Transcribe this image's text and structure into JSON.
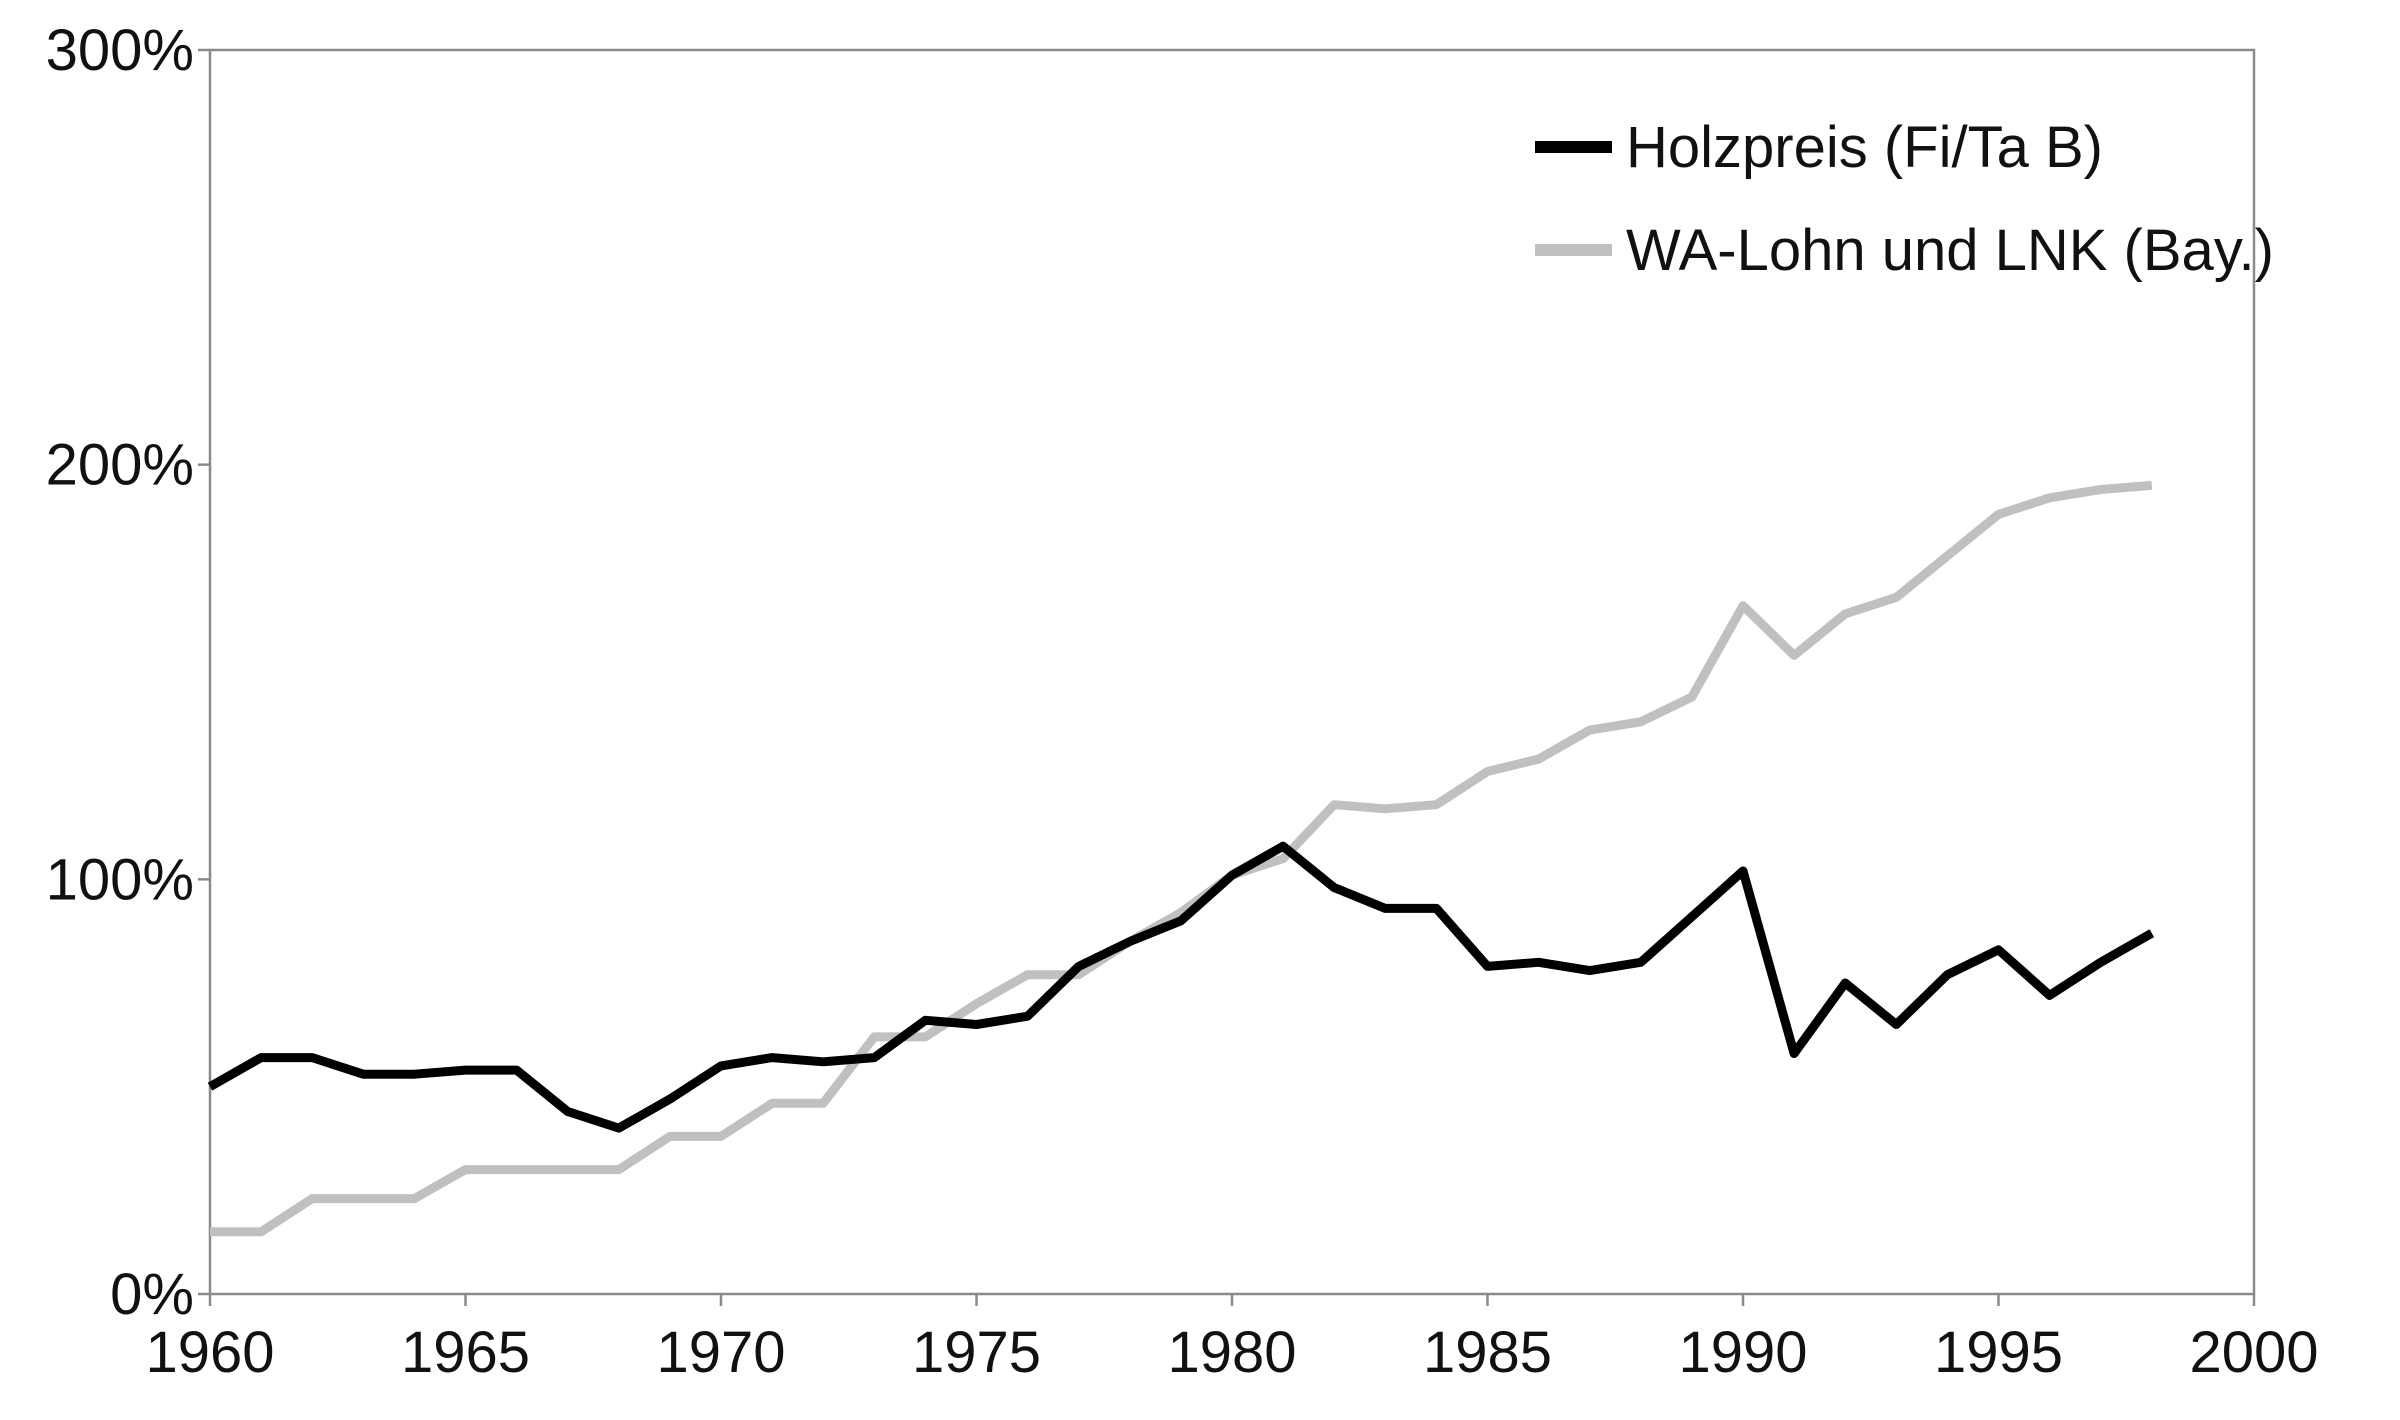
{
  "chart_data": {
    "type": "line",
    "xlim": [
      1960,
      2000
    ],
    "ylim": [
      0,
      300
    ],
    "grid": false,
    "legend_position": "top-right",
    "x_ticks": [
      "1960",
      "1965",
      "1970",
      "1975",
      "1980",
      "1985",
      "1990",
      "1995",
      "2000"
    ],
    "y_ticks": [
      "0%",
      "100%",
      "200%",
      "300%"
    ],
    "x": [
      1960,
      1961,
      1962,
      1963,
      1964,
      1965,
      1966,
      1967,
      1968,
      1969,
      1970,
      1971,
      1972,
      1973,
      1974,
      1975,
      1976,
      1977,
      1978,
      1979,
      1980,
      1981,
      1982,
      1983,
      1984,
      1985,
      1986,
      1987,
      1988,
      1989,
      1990,
      1991,
      1992,
      1993,
      1994,
      1995,
      1996,
      1997,
      1998
    ],
    "series": [
      {
        "name": "Holzpreis (Fi/Ta B)",
        "color": "#000000",
        "values": [
          50,
          57,
          57,
          53,
          53,
          54,
          54,
          44,
          40,
          47,
          55,
          57,
          56,
          57,
          66,
          65,
          67,
          79,
          85,
          90,
          101,
          108,
          98,
          93,
          93,
          79,
          80,
          78,
          80,
          91,
          102,
          58,
          75,
          65,
          77,
          83,
          72,
          80,
          87
        ]
      },
      {
        "name": "WA-Lohn und LNK (Bay.)",
        "color": "#c0c0c0",
        "values": [
          15,
          15,
          23,
          23,
          23,
          30,
          30,
          30,
          30,
          38,
          38,
          46,
          46,
          62,
          62,
          70,
          77,
          77,
          85,
          92,
          101,
          105,
          118,
          117,
          118,
          126,
          129,
          136,
          138,
          144,
          166,
          154,
          164,
          168,
          178,
          188,
          192,
          194,
          195
        ]
      }
    ]
  }
}
